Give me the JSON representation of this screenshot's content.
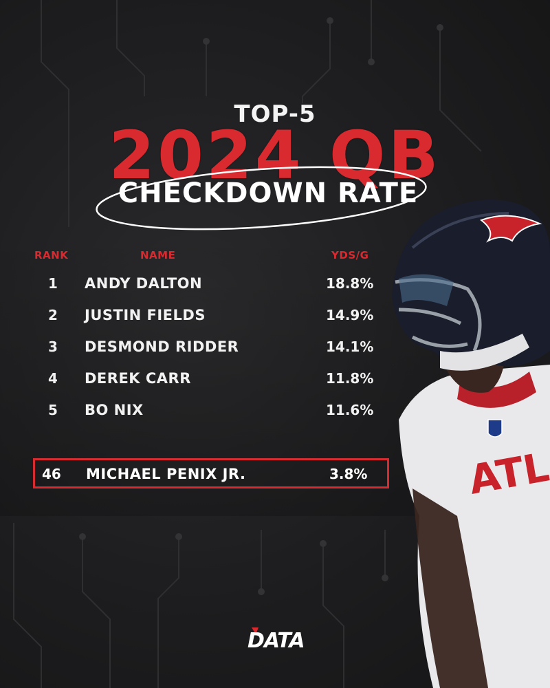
{
  "header": {
    "top": "TOP-5",
    "big": "2024 QB",
    "sub": "CHECKDOWN RATE"
  },
  "columns": {
    "rank": "RANK",
    "name": "NAME",
    "value": "YDS/G"
  },
  "rows": [
    {
      "rank": "1",
      "name": "ANDY DALTON",
      "value": "18.8%"
    },
    {
      "rank": "2",
      "name": "JUSTIN FIELDS",
      "value": "14.9%"
    },
    {
      "rank": "3",
      "name": "DESMOND RIDDER",
      "value": "14.1%"
    },
    {
      "rank": "4",
      "name": "DEREK CARR",
      "value": "11.8%"
    },
    {
      "rank": "5",
      "name": "BO NIX",
      "value": "11.6%"
    }
  ],
  "highlight": {
    "rank": "46",
    "name": "MICHAEL PENIX JR.",
    "value": "3.8%"
  },
  "player_jersey_text": "ATL",
  "logo": "DATA",
  "colors": {
    "accent": "#d92a2f",
    "background": "#1c1c1e",
    "text": "#ffffff",
    "helmet": "#1a1d2b",
    "jersey": "#e9e9ec"
  },
  "icons": [
    "nfl-shield-icon",
    "falcons-logo-icon"
  ]
}
